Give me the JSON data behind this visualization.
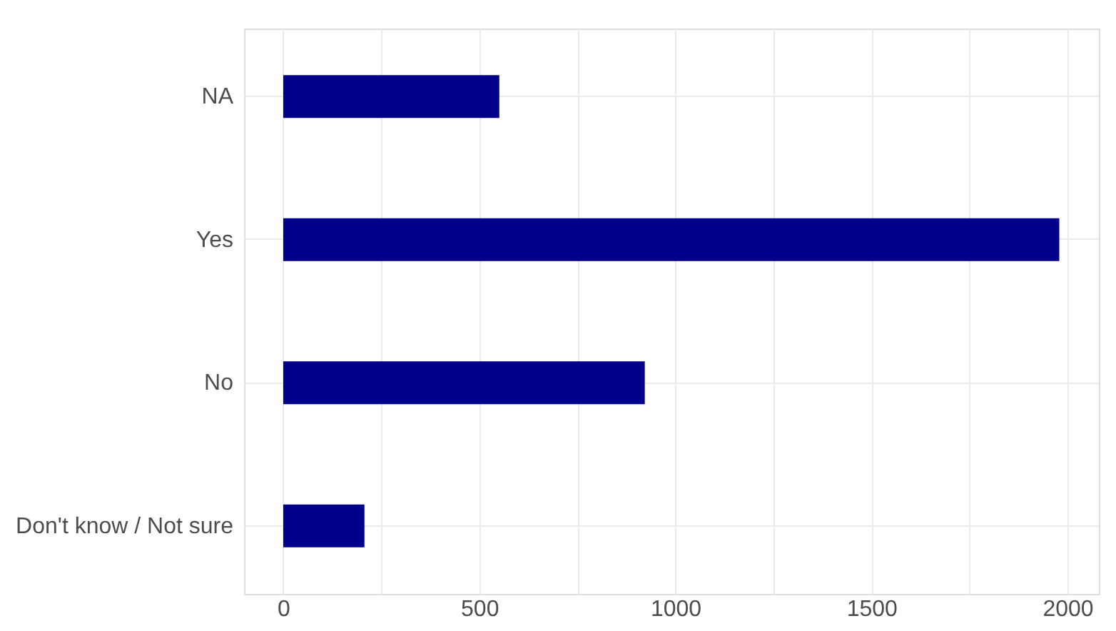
{
  "chart_data": {
    "type": "bar",
    "orientation": "horizontal",
    "categories": [
      "NA",
      "Yes",
      "No",
      "Don't know / Not sure"
    ],
    "values": [
      551,
      1979,
      922,
      207
    ],
    "color": "#00008b",
    "xlim": [
      -100,
      2080
    ],
    "xticks": [
      0,
      {
        "value": 250,
        "label": null
      },
      500,
      {
        "value": 750,
        "label": null
      },
      1000,
      {
        "value": 1250,
        "label": null
      },
      1500,
      {
        "value": 1750,
        "label": null
      },
      2000
    ],
    "grid": true
  }
}
